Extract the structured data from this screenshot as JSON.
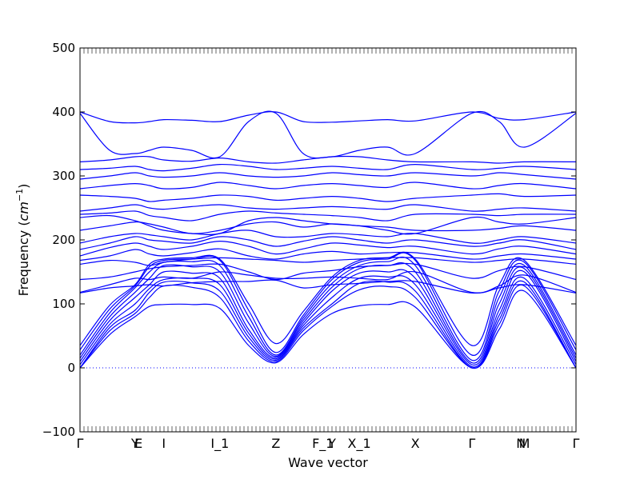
{
  "chart_data": {
    "type": "line",
    "title": "",
    "xlabel": "Wave vector",
    "ylabel_main": "Frequency (",
    "ylabel_unit": "cm",
    "ylabel_exp": "−1",
    "ylabel_close": ")",
    "ylim": [
      -100,
      500
    ],
    "yticks": [
      -100,
      0,
      100,
      200,
      300,
      400,
      500
    ],
    "x_ticks": [
      {
        "label": "Γ",
        "pos": 0.0
      },
      {
        "label": "Y",
        "pos": 0.111
      },
      {
        "label": "E",
        "pos": 0.118
      },
      {
        "label": "I",
        "pos": 0.169
      },
      {
        "label": "I_1",
        "pos": 0.282
      },
      {
        "label": "Z",
        "pos": 0.395
      },
      {
        "label": "F_1",
        "pos": 0.49
      },
      {
        "label": "Y",
        "pos": 0.508
      },
      {
        "label": "X_1",
        "pos": 0.563
      },
      {
        "label": "X",
        "pos": 0.676
      },
      {
        "label": "Γ",
        "pos": 0.79
      },
      {
        "label": "N",
        "pos": 0.889
      },
      {
        "label": "M",
        "pos": 0.896
      },
      {
        "label": "Γ",
        "pos": 1.0
      }
    ],
    "zero_line": 0,
    "line_color": "#0000ff",
    "grid": false,
    "series": [
      {
        "values": [
          0,
          52,
          80,
          96,
          99,
          99,
          93,
          35,
          8,
          52,
          85,
          97,
          99,
          95,
          0,
          60,
          120,
          0
        ]
      },
      {
        "values": [
          0,
          58,
          85,
          110,
          128,
          126,
          110,
          42,
          10,
          58,
          96,
          122,
          127,
          110,
          0,
          68,
          128,
          0
        ]
      },
      {
        "values": [
          0,
          63,
          90,
          118,
          134,
          133,
          120,
          48,
          12,
          62,
          100,
          132,
          134,
          120,
          0,
          75,
          134,
          0
        ]
      },
      {
        "values": [
          5,
          68,
          100,
          124,
          138,
          140,
          130,
          54,
          14,
          66,
          110,
          140,
          142,
          130,
          2,
          82,
          140,
          5
        ]
      },
      {
        "values": [
          10,
          74,
          110,
          130,
          150,
          148,
          140,
          60,
          16,
          70,
          120,
          148,
          150,
          140,
          5,
          90,
          150,
          10
        ]
      },
      {
        "values": [
          15,
          80,
          118,
          140,
          160,
          158,
          150,
          70,
          18,
          74,
          126,
          155,
          160,
          150,
          8,
          100,
          155,
          15
        ]
      },
      {
        "values": [
          20,
          86,
          125,
          150,
          165,
          166,
          160,
          80,
          20,
          78,
          132,
          160,
          166,
          160,
          12,
          110,
          160,
          20
        ]
      },
      {
        "values": [
          28,
          92,
          128,
          158,
          168,
          170,
          168,
          90,
          24,
          82,
          138,
          165,
          170,
          168,
          20,
          120,
          165,
          28
        ]
      },
      {
        "values": [
          35,
          98,
          130,
          162,
          170,
          172,
          170,
          100,
          38,
          88,
          142,
          168,
          172,
          170,
          35,
          130,
          168,
          35
        ]
      },
      {
        "values": [
          117,
          125,
          128,
          130,
          128,
          133,
          135,
          135,
          137,
          125,
          130,
          132,
          135,
          135,
          117,
          125,
          130,
          117
        ]
      },
      {
        "values": [
          118,
          130,
          140,
          138,
          142,
          140,
          150,
          145,
          140,
          140,
          142,
          140,
          138,
          150,
          118,
          128,
          145,
          118
        ]
      },
      {
        "values": [
          138,
          142,
          150,
          155,
          158,
          160,
          162,
          150,
          138,
          148,
          152,
          158,
          160,
          162,
          140,
          152,
          158,
          138
        ]
      },
      {
        "values": [
          162,
          168,
          165,
          160,
          165,
          170,
          172,
          170,
          168,
          165,
          168,
          170,
          172,
          172,
          165,
          168,
          170,
          162
        ]
      },
      {
        "values": [
          168,
          175,
          185,
          178,
          175,
          180,
          186,
          175,
          170,
          178,
          182,
          178,
          180,
          180,
          170,
          175,
          178,
          170
        ]
      },
      {
        "values": [
          175,
          188,
          195,
          190,
          185,
          190,
          198,
          190,
          178,
          186,
          195,
          192,
          188,
          190,
          178,
          186,
          190,
          178
        ]
      },
      {
        "values": [
          185,
          195,
          205,
          200,
          198,
          195,
          205,
          200,
          190,
          198,
          205,
          200,
          195,
          200,
          190,
          195,
          200,
          185
        ]
      },
      {
        "values": [
          195,
          205,
          210,
          208,
          205,
          200,
          210,
          215,
          205,
          205,
          210,
          208,
          205,
          210,
          195,
          200,
          205,
          195
        ]
      },
      {
        "values": [
          215,
          222,
          228,
          225,
          220,
          210,
          215,
          225,
          228,
          220,
          225,
          222,
          220,
          215,
          215,
          218,
          222,
          215
        ]
      },
      {
        "values": [
          235,
          238,
          230,
          222,
          215,
          210,
          210,
          230,
          235,
          230,
          225,
          222,
          215,
          210,
          235,
          228,
          225,
          235
        ]
      },
      {
        "values": [
          240,
          242,
          245,
          238,
          235,
          230,
          240,
          245,
          242,
          240,
          238,
          235,
          230,
          240,
          240,
          238,
          240,
          240
        ]
      },
      {
        "values": [
          245,
          250,
          255,
          250,
          248,
          252,
          255,
          250,
          248,
          250,
          252,
          250,
          248,
          255,
          245,
          248,
          250,
          245
        ]
      },
      {
        "values": [
          270,
          268,
          265,
          260,
          262,
          265,
          270,
          268,
          262,
          265,
          268,
          265,
          260,
          265,
          270,
          272,
          268,
          270
        ]
      },
      {
        "values": [
          280,
          285,
          288,
          285,
          280,
          282,
          290,
          285,
          280,
          285,
          288,
          285,
          282,
          290,
          280,
          285,
          288,
          280
        ]
      },
      {
        "values": [
          295,
          300,
          305,
          300,
          298,
          300,
          305,
          300,
          298,
          300,
          305,
          302,
          300,
          305,
          300,
          305,
          302,
          295
        ]
      },
      {
        "values": [
          310,
          312,
          315,
          310,
          308,
          312,
          318,
          315,
          310,
          312,
          315,
          312,
          310,
          318,
          310,
          312,
          315,
          310
        ]
      },
      {
        "values": [
          322,
          325,
          330,
          330,
          325,
          323,
          328,
          322,
          320,
          325,
          330,
          330,
          325,
          322,
          322,
          320,
          322,
          322
        ]
      },
      {
        "values": [
          398,
          340,
          335,
          340,
          345,
          340,
          330,
          385,
          398,
          335,
          330,
          340,
          345,
          335,
          398,
          385,
          345,
          398
        ]
      },
      {
        "values": [
          400,
          385,
          383,
          385,
          388,
          387,
          385,
          395,
          400,
          385,
          384,
          386,
          388,
          386,
          400,
          390,
          388,
          400
        ]
      }
    ],
    "x_sample_positions": [
      0.0,
      0.06,
      0.111,
      0.14,
      0.169,
      0.225,
      0.282,
      0.34,
      0.395,
      0.45,
      0.508,
      0.563,
      0.62,
      0.676,
      0.79,
      0.845,
      0.896,
      1.0
    ]
  }
}
